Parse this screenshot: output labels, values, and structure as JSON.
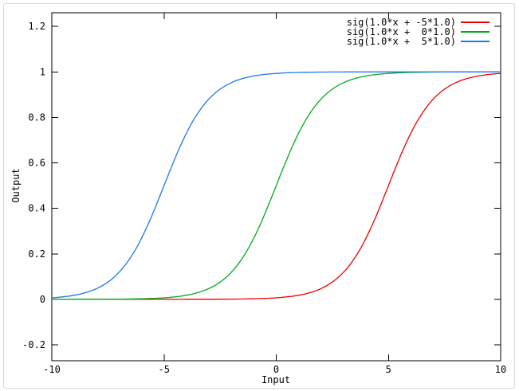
{
  "window": {
    "background": "#ffffff",
    "frame_border_color": "#d8d8d8"
  },
  "chart_data": {
    "type": "line",
    "title": "",
    "xlabel": "Input",
    "ylabel": "Output",
    "xlim": [
      -10,
      10
    ],
    "ylim": [
      -0.27,
      1.26
    ],
    "x_tick_values": [
      -10,
      -5,
      0,
      5,
      10
    ],
    "x_tick_labels": [
      "-10",
      "-5",
      "0",
      "5",
      "10"
    ],
    "y_tick_values": [
      -0.2,
      0,
      0.2,
      0.4,
      0.6,
      0.8,
      1,
      1.2
    ],
    "y_tick_labels": [
      "-0.2",
      "0",
      "0.2",
      "0.4",
      "0.6",
      "0.8",
      "1",
      "1.2"
    ],
    "grid": false,
    "axis_color": "#000000",
    "tick_style": "inward-mirrored",
    "legend_position": "top-right-inside",
    "series": [
      {
        "name": "sig(1.0*x + -5*1.0)",
        "color": "#ee0000",
        "function": "sigmoid(w*x + b*1.0)",
        "w": 1.0,
        "b": -5.0,
        "sample_x": [
          -10,
          -9,
          -8,
          -7,
          -6,
          -5,
          -4,
          -3,
          -2,
          -1,
          0,
          1,
          2,
          3,
          4,
          5,
          6,
          7,
          8,
          9,
          10
        ],
        "sample_y": [
          0.0,
          0.0,
          0.0,
          0.0,
          0.0,
          0.0,
          0.0001,
          0.0003,
          0.0009,
          0.0025,
          0.0067,
          0.018,
          0.0474,
          0.1192,
          0.2689,
          0.5,
          0.7311,
          0.8808,
          0.9526,
          0.982,
          0.9933
        ]
      },
      {
        "name": "sig(1.0*x +  0*1.0)",
        "color": "#00ab20",
        "function": "sigmoid(w*x + b*1.0)",
        "w": 1.0,
        "b": 0.0,
        "sample_x": [
          -10,
          -9,
          -8,
          -7,
          -6,
          -5,
          -4,
          -3,
          -2,
          -1,
          0,
          1,
          2,
          3,
          4,
          5,
          6,
          7,
          8,
          9,
          10
        ],
        "sample_y": [
          0.0,
          0.0001,
          0.0003,
          0.0009,
          0.0025,
          0.0067,
          0.018,
          0.0474,
          0.1192,
          0.2689,
          0.5,
          0.7311,
          0.8808,
          0.9526,
          0.982,
          0.9933,
          0.9975,
          0.9991,
          0.9997,
          0.9999,
          1.0
        ]
      },
      {
        "name": "sig(1.0*x +  5*1.0)",
        "color": "#1e78e8",
        "function": "sigmoid(w*x + b*1.0)",
        "w": 1.0,
        "b": 5.0,
        "sample_x": [
          -10,
          -9,
          -8,
          -7,
          -6,
          -5,
          -4,
          -3,
          -2,
          -1,
          0,
          1,
          2,
          3,
          4,
          5,
          6,
          7,
          8,
          9,
          10
        ],
        "sample_y": [
          0.0067,
          0.018,
          0.0474,
          0.1192,
          0.2689,
          0.5,
          0.7311,
          0.8808,
          0.9526,
          0.982,
          0.9933,
          0.9975,
          0.9991,
          0.9997,
          0.9999,
          1.0,
          1.0,
          1.0,
          1.0,
          1.0,
          1.0
        ]
      }
    ]
  }
}
